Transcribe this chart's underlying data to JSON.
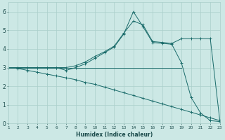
{
  "xlabel": "Humidex (Indice chaleur)",
  "bg_color": "#cce8e5",
  "grid_color": "#aacfcb",
  "line_color": "#1a6b6a",
  "xlim": [
    1,
    23
  ],
  "ylim": [
    0,
    6.5
  ],
  "xticks": [
    1,
    2,
    3,
    4,
    5,
    6,
    7,
    8,
    9,
    10,
    11,
    12,
    13,
    14,
    15,
    16,
    17,
    18,
    19,
    20,
    21,
    22,
    23
  ],
  "yticks": [
    0,
    1,
    2,
    3,
    4,
    5,
    6
  ],
  "series": [
    {
      "x": [
        1,
        19
      ],
      "y": [
        3.0,
        3.0
      ],
      "marker": false
    },
    {
      "x": [
        1,
        2,
        3,
        4,
        5,
        6,
        7,
        8,
        9,
        10,
        11,
        12,
        13,
        14,
        15,
        16,
        17,
        18,
        19,
        20,
        21,
        22,
        23
      ],
      "y": [
        3.0,
        3.0,
        3.0,
        3.0,
        3.0,
        3.0,
        2.85,
        3.0,
        3.2,
        3.5,
        3.8,
        4.1,
        4.8,
        6.0,
        5.2,
        4.35,
        4.3,
        4.25,
        3.25,
        1.4,
        0.55,
        0.15,
        0.1
      ],
      "marker": true
    },
    {
      "x": [
        1,
        2,
        3,
        4,
        5,
        6,
        7,
        8,
        9,
        10,
        11,
        12,
        13,
        14,
        15,
        16,
        17,
        18,
        19,
        20,
        21,
        22,
        23
      ],
      "y": [
        3.0,
        3.0,
        3.0,
        3.0,
        3.0,
        3.0,
        3.0,
        3.1,
        3.3,
        3.6,
        3.85,
        4.15,
        4.85,
        5.5,
        5.3,
        4.4,
        4.35,
        4.3,
        4.55,
        4.55,
        4.55,
        4.55,
        0.1
      ],
      "marker": true
    },
    {
      "x": [
        1,
        2,
        3,
        4,
        5,
        6,
        7,
        8,
        9,
        10,
        11,
        12,
        13,
        14,
        15,
        16,
        17,
        18,
        19,
        20,
        21,
        22,
        23
      ],
      "y": [
        3.0,
        2.95,
        2.85,
        2.75,
        2.65,
        2.55,
        2.45,
        2.35,
        2.2,
        2.1,
        1.95,
        1.8,
        1.65,
        1.5,
        1.35,
        1.2,
        1.05,
        0.9,
        0.75,
        0.6,
        0.45,
        0.3,
        0.15
      ],
      "marker": true
    }
  ]
}
